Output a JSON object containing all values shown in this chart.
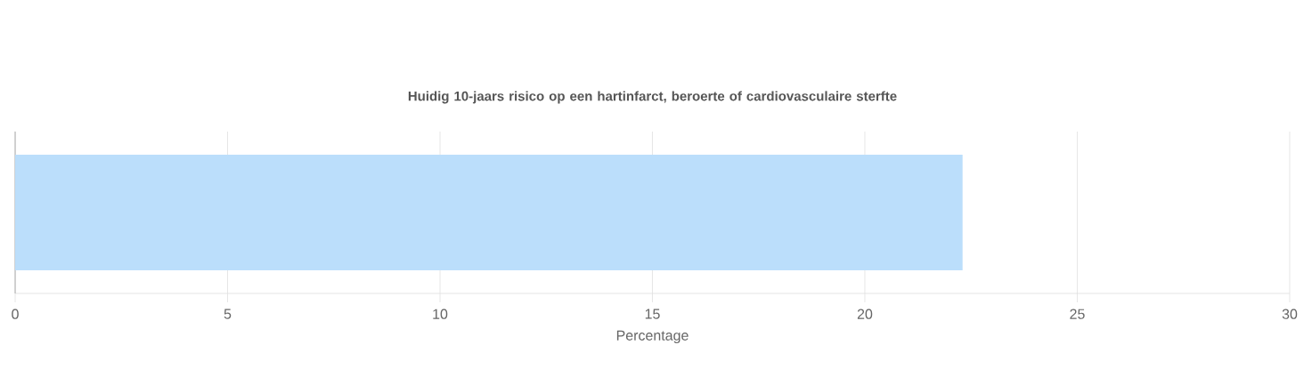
{
  "chart_data": {
    "type": "bar",
    "orientation": "horizontal",
    "title": "Huidig 10-jaars risico op een hartinfarct, beroerte of cardiovasculaire sterfte",
    "xlabel": "Percentage",
    "categories": [
      null
    ],
    "values": [
      22.3
    ],
    "color": "#bbdefb",
    "xlim": [
      0,
      30
    ],
    "xticks": [
      0,
      5,
      10,
      15,
      20,
      25,
      30
    ],
    "grid": "x",
    "tick_labels": "x"
  }
}
